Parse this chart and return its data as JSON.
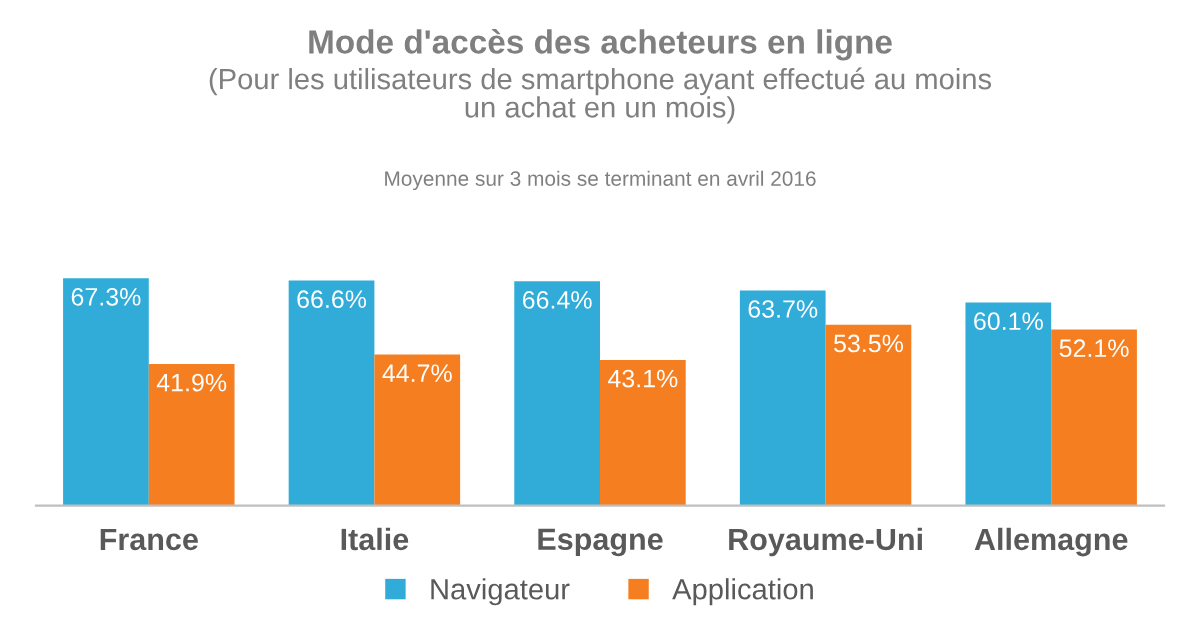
{
  "chart_data": {
    "type": "bar",
    "title": "Mode d'accès des acheteurs en ligne",
    "subtitle": "(Pour les utilisateurs de smartphone ayant effectué au moins\nun achat en un mois)",
    "annotations": [
      "Moyenne sur 3 mois se terminant en avril 2016"
    ],
    "categories": [
      "France",
      "Italie",
      "Espagne",
      "Royaume-Uni",
      "Allemagne"
    ],
    "series": [
      {
        "name": "Navigateur",
        "color": "#31acd9",
        "values": [
          67.3,
          66.6,
          66.4,
          63.7,
          60.1
        ],
        "value_labels": [
          "67.3%",
          "66.6%",
          "66.4%",
          "63.7%",
          "60.1%"
        ]
      },
      {
        "name": "Application",
        "color": "#f57f20",
        "values": [
          41.9,
          44.7,
          43.1,
          53.5,
          52.1
        ],
        "value_labels": [
          "41.9%",
          "44.7%",
          "43.1%",
          "53.5%",
          "52.1%"
        ]
      }
    ],
    "legend": "bottom",
    "grid": false
  }
}
